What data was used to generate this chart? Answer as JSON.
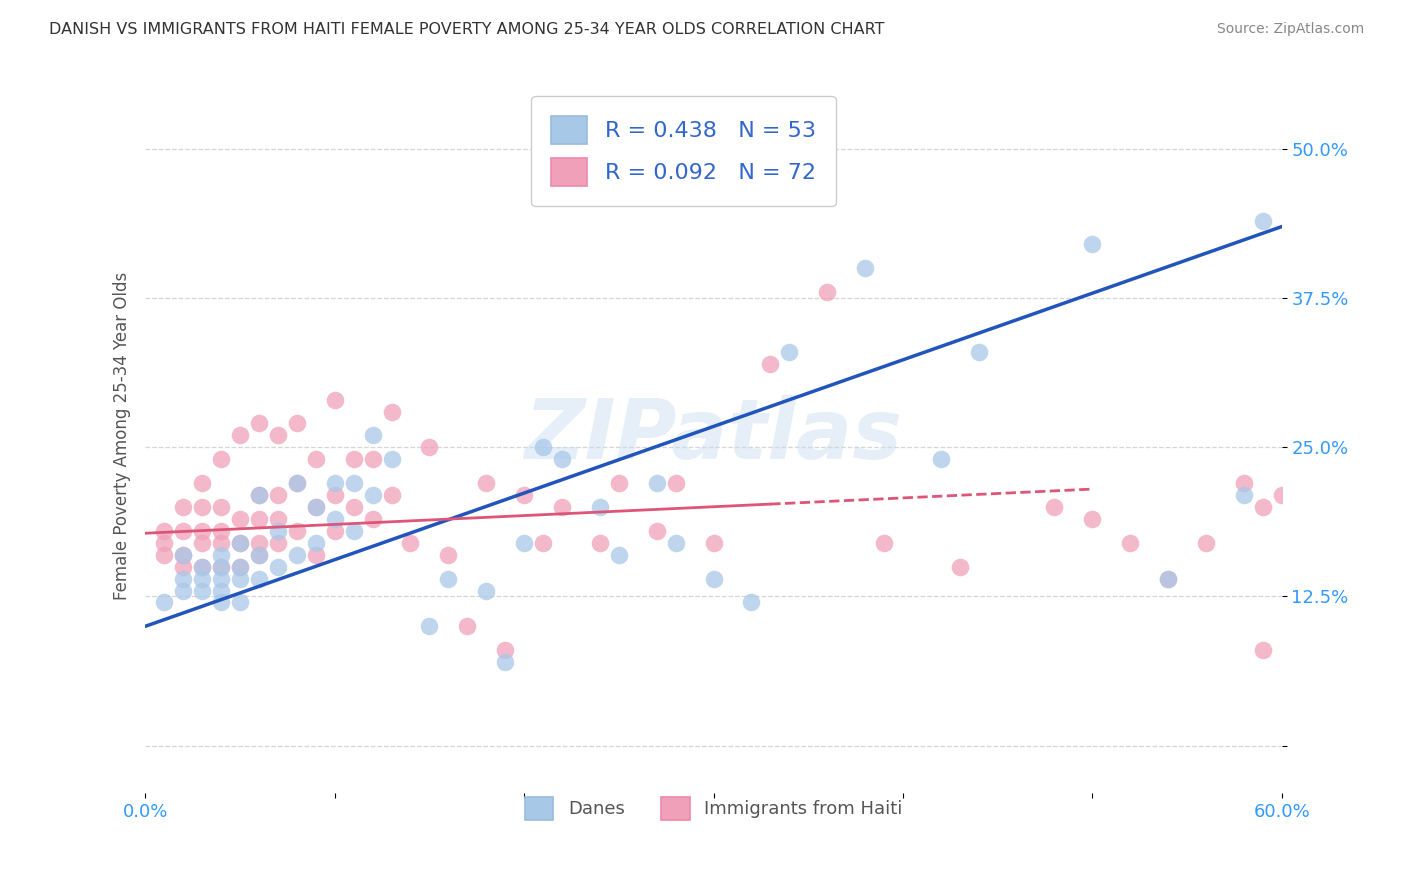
{
  "title": "DANISH VS IMMIGRANTS FROM HAITI FEMALE POVERTY AMONG 25-34 YEAR OLDS CORRELATION CHART",
  "source": "Source: ZipAtlas.com",
  "ylabel": "Female Poverty Among 25-34 Year Olds",
  "xlim": [
    0.0,
    0.6
  ],
  "ylim": [
    -0.04,
    0.56
  ],
  "color_danes": "#a8c8e8",
  "color_haiti": "#f0a0b8",
  "line_color_danes": "#2255bb",
  "line_color_haiti": "#dd5577",
  "watermark": "ZIPatlas",
  "danes_line_x0": 0.0,
  "danes_line_y0": 0.1,
  "danes_line_x1": 0.6,
  "danes_line_y1": 0.435,
  "haiti_line_x0": 0.0,
  "haiti_line_y0": 0.178,
  "haiti_line_x1": 0.5,
  "haiti_line_y1": 0.215,
  "danes_x": [
    0.01,
    0.02,
    0.02,
    0.02,
    0.03,
    0.03,
    0.03,
    0.04,
    0.04,
    0.04,
    0.04,
    0.04,
    0.05,
    0.05,
    0.05,
    0.05,
    0.06,
    0.06,
    0.06,
    0.07,
    0.07,
    0.08,
    0.08,
    0.09,
    0.09,
    0.1,
    0.1,
    0.11,
    0.11,
    0.12,
    0.12,
    0.13,
    0.15,
    0.16,
    0.18,
    0.19,
    0.2,
    0.21,
    0.22,
    0.24,
    0.25,
    0.27,
    0.28,
    0.3,
    0.32,
    0.34,
    0.38,
    0.42,
    0.44,
    0.5,
    0.54,
    0.58,
    0.59
  ],
  "danes_y": [
    0.12,
    0.14,
    0.13,
    0.16,
    0.13,
    0.14,
    0.15,
    0.12,
    0.13,
    0.15,
    0.14,
    0.16,
    0.12,
    0.14,
    0.15,
    0.17,
    0.14,
    0.16,
    0.21,
    0.15,
    0.18,
    0.16,
    0.22,
    0.17,
    0.2,
    0.19,
    0.22,
    0.18,
    0.22,
    0.21,
    0.26,
    0.24,
    0.1,
    0.14,
    0.13,
    0.07,
    0.17,
    0.25,
    0.24,
    0.2,
    0.16,
    0.22,
    0.17,
    0.14,
    0.12,
    0.33,
    0.4,
    0.24,
    0.33,
    0.42,
    0.14,
    0.21,
    0.44
  ],
  "haiti_x": [
    0.01,
    0.01,
    0.01,
    0.02,
    0.02,
    0.02,
    0.02,
    0.03,
    0.03,
    0.03,
    0.03,
    0.03,
    0.04,
    0.04,
    0.04,
    0.04,
    0.04,
    0.05,
    0.05,
    0.05,
    0.05,
    0.06,
    0.06,
    0.06,
    0.06,
    0.06,
    0.07,
    0.07,
    0.07,
    0.07,
    0.08,
    0.08,
    0.08,
    0.09,
    0.09,
    0.09,
    0.1,
    0.1,
    0.1,
    0.11,
    0.11,
    0.12,
    0.12,
    0.13,
    0.13,
    0.14,
    0.15,
    0.16,
    0.17,
    0.18,
    0.19,
    0.2,
    0.21,
    0.22,
    0.24,
    0.25,
    0.27,
    0.28,
    0.3,
    0.33,
    0.36,
    0.39,
    0.43,
    0.48,
    0.5,
    0.52,
    0.54,
    0.56,
    0.58,
    0.59,
    0.59,
    0.6
  ],
  "haiti_y": [
    0.16,
    0.17,
    0.18,
    0.15,
    0.16,
    0.18,
    0.2,
    0.15,
    0.17,
    0.18,
    0.2,
    0.22,
    0.15,
    0.17,
    0.18,
    0.2,
    0.24,
    0.15,
    0.17,
    0.19,
    0.26,
    0.16,
    0.17,
    0.19,
    0.21,
    0.27,
    0.17,
    0.19,
    0.21,
    0.26,
    0.18,
    0.22,
    0.27,
    0.16,
    0.2,
    0.24,
    0.18,
    0.21,
    0.29,
    0.2,
    0.24,
    0.19,
    0.24,
    0.21,
    0.28,
    0.17,
    0.25,
    0.16,
    0.1,
    0.22,
    0.08,
    0.21,
    0.17,
    0.2,
    0.17,
    0.22,
    0.18,
    0.22,
    0.17,
    0.32,
    0.38,
    0.17,
    0.15,
    0.2,
    0.19,
    0.17,
    0.14,
    0.17,
    0.22,
    0.08,
    0.2,
    0.21
  ]
}
